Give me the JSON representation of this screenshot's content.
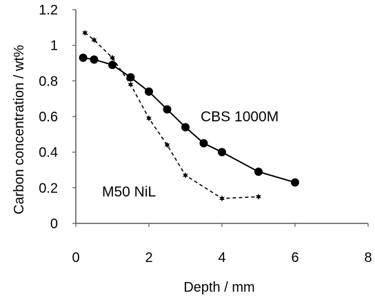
{
  "chart_data": {
    "type": "line",
    "title": "",
    "xlabel": "Depth / mm",
    "ylabel": "Carbon concentration / wt%",
    "xlim": [
      0,
      8
    ],
    "ylim": [
      0,
      1.2
    ],
    "x_ticks": [
      0,
      2,
      4,
      6,
      8
    ],
    "y_ticks": [
      0,
      0.2,
      0.4,
      0.6,
      0.8,
      1,
      1.2
    ],
    "x_tick_labels": [
      "0",
      "2",
      "4",
      "6",
      "8"
    ],
    "y_tick_labels": [
      "0",
      "0.2",
      "0.4",
      "0.6",
      "0.8",
      "1",
      "1.2"
    ],
    "grid": false,
    "legend": "none",
    "series": [
      {
        "name": "CBS 1000M",
        "line_style": "solid",
        "marker": "circle",
        "color": "#000000",
        "x": [
          0.2,
          0.5,
          1.0,
          1.5,
          2.0,
          2.5,
          3.0,
          3.5,
          4.0,
          5.0,
          6.0
        ],
        "y": [
          0.93,
          0.92,
          0.89,
          0.82,
          0.74,
          0.64,
          0.54,
          0.45,
          0.4,
          0.29,
          0.23
        ]
      },
      {
        "name": "M50 NiL",
        "line_style": "dashed",
        "marker": "star",
        "color": "#000000",
        "x": [
          0.25,
          0.5,
          1.0,
          1.5,
          2.0,
          2.5,
          3.0,
          4.0,
          5.0
        ],
        "y": [
          1.07,
          1.03,
          0.93,
          0.78,
          0.59,
          0.44,
          0.27,
          0.14,
          0.15
        ]
      }
    ]
  }
}
